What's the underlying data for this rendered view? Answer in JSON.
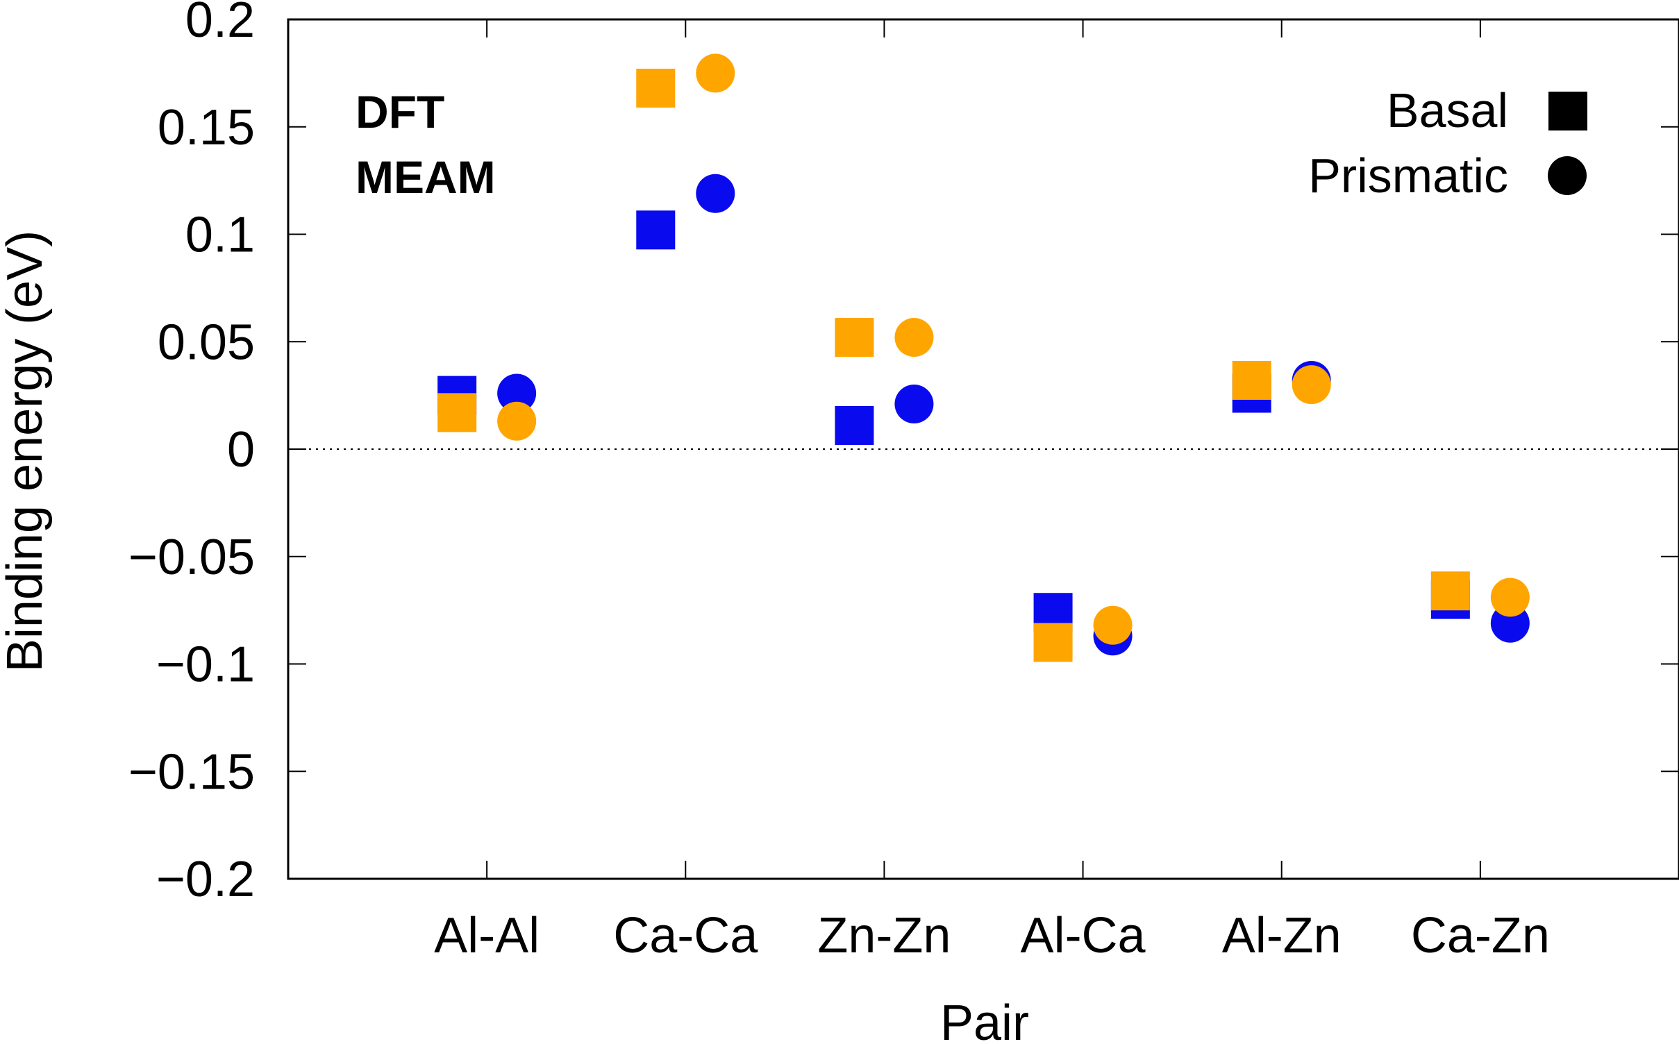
{
  "chart_data": {
    "type": "scatter",
    "title": "",
    "xlabel": "Pair",
    "ylabel": "Binding energy (eV)",
    "ylim": [
      -0.2,
      0.2
    ],
    "grid": false,
    "categories": [
      "Al-Al",
      "Ca-Ca",
      "Zn-Zn",
      "Al-Ca",
      "Al-Zn",
      "Ca-Zn"
    ],
    "yticks": [
      {
        "value": 0.2,
        "label": "0.2"
      },
      {
        "value": 0.15,
        "label": "0.15"
      },
      {
        "value": 0.1,
        "label": "0.1"
      },
      {
        "value": 0.05,
        "label": "0.05"
      },
      {
        "value": 0,
        "label": "0"
      },
      {
        "value": -0.05,
        "label": "−0.05"
      },
      {
        "value": -0.1,
        "label": "−0.1"
      },
      {
        "value": -0.15,
        "label": "−0.15"
      },
      {
        "value": -0.2,
        "label": "−0.2"
      }
    ],
    "reference_line": {
      "value": 0,
      "style": "dotted"
    },
    "methods": [
      {
        "name": "DFT",
        "color": "#0a0aee"
      },
      {
        "name": "MEAM",
        "color": "#ffa500"
      }
    ],
    "orientations": [
      {
        "name": "Basal",
        "marker": "square"
      },
      {
        "name": "Prismatic",
        "marker": "circle"
      }
    ],
    "series": [
      {
        "name": "DFT Basal",
        "method": "DFT",
        "orientation": "Basal",
        "values": [
          0.025,
          0.102,
          0.011,
          -0.076,
          0.026,
          -0.07
        ]
      },
      {
        "name": "DFT Prismatic",
        "method": "DFT",
        "orientation": "Prismatic",
        "values": [
          0.026,
          0.119,
          0.021,
          -0.087,
          0.032,
          -0.081
        ]
      },
      {
        "name": "MEAM Basal",
        "method": "MEAM",
        "orientation": "Basal",
        "values": [
          0.017,
          0.168,
          0.052,
          -0.09,
          0.032,
          -0.066
        ]
      },
      {
        "name": "MEAM Prismatic",
        "method": "MEAM",
        "orientation": "Prismatic",
        "values": [
          0.013,
          0.175,
          0.052,
          -0.082,
          0.03,
          -0.069
        ]
      }
    ]
  }
}
